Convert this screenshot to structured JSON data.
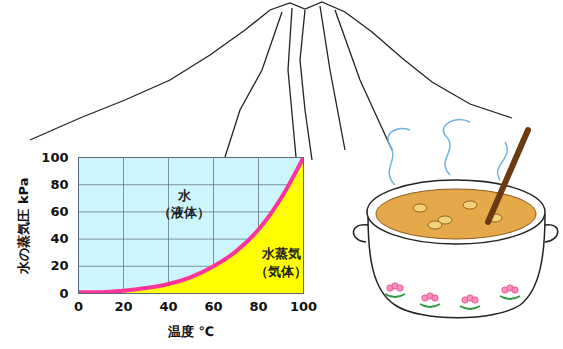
{
  "chart_data": {
    "type": "area",
    "x_label": "温度 ℃",
    "y_label": "水の蒸気圧 kPa",
    "x": [
      0,
      10,
      20,
      30,
      40,
      50,
      60,
      70,
      80,
      90,
      100
    ],
    "values": [
      1,
      1,
      2,
      4,
      7,
      12,
      20,
      31,
      47,
      70,
      100
    ],
    "color": "#ffff00",
    "xlim": [
      0,
      100
    ],
    "ylim": [
      0,
      100
    ],
    "xticks": [
      0,
      20,
      40,
      60,
      80,
      100
    ],
    "yticks": [
      0,
      20,
      40,
      60,
      80,
      100
    ],
    "grid": true,
    "annotations": [
      {
        "text": "水"
      },
      {
        "text": "（液体）"
      },
      {
        "text": "水蒸気"
      },
      {
        "text": "（気体）"
      }
    ]
  }
}
